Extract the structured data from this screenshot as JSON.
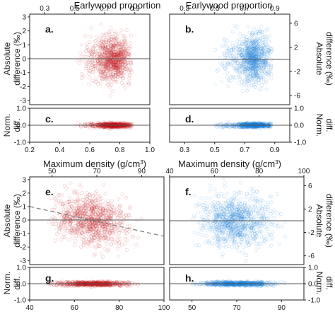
{
  "colors": {
    "red": "#c0141e",
    "blue": "#1a7fd6",
    "axis": "#222222",
    "zero_line": "#555555",
    "trend": "#7a7a7a"
  },
  "titles": {
    "top_earlywood_left": "Earlywood proportion",
    "top_earlywood_right": "Earlywood proportion",
    "top_density_left": "Maximum density (g/cm",
    "top_density_right": "Maximum density (g/cm",
    "density_superscript": "3",
    "density_close": ")"
  },
  "y_labels": {
    "abs_line1": "Absolute",
    "abs_line2": "difference (‰",
    "abs_close": ")",
    "norm_line1": "Norm.",
    "norm_line2": "diff."
  },
  "chart_data": [
    {
      "id": "a",
      "letter": "a.",
      "type": "scatter",
      "color": "red",
      "xlim": [
        0.2,
        1.0
      ],
      "ylim": [
        -3.3,
        3.2
      ],
      "xticks_top": [
        "0.3",
        "0.5",
        "0.7",
        "0.9"
      ],
      "xticks_top_vals": [
        0.3,
        0.5,
        0.7,
        0.9
      ],
      "yticks": [
        "3",
        "2",
        "1",
        "0",
        "-1",
        "-2",
        "-3"
      ],
      "ytick_vals": [
        3,
        2,
        1,
        0,
        -1,
        -2,
        -3
      ],
      "ytick_side": "left",
      "zero_line": true,
      "cloud": {
        "center": 0.78,
        "spread": 0.06,
        "skew": "left",
        "y_sd": 0.8,
        "min": 0.5,
        "max": 0.88
      }
    },
    {
      "id": "b",
      "letter": "b.",
      "type": "scatter",
      "color": "blue",
      "xlim": [
        0.2,
        1.0
      ],
      "ylim": [
        -7.5,
        7.5
      ],
      "xticks_top": [
        "0.3",
        "0.5",
        "0.7",
        "0.9"
      ],
      "xticks_top_vals": [
        0.3,
        0.5,
        0.7,
        0.9
      ],
      "yticks": [
        "6",
        "2",
        "-2",
        "-6"
      ],
      "ytick_vals": [
        6,
        2,
        -2,
        -6
      ],
      "ytick_side": "right",
      "zero_line": true,
      "cloud": {
        "center": 0.78,
        "spread": 0.06,
        "skew": "left",
        "y_sd": 2.0,
        "min": 0.5,
        "max": 0.88
      }
    },
    {
      "id": "c",
      "letter": "c.",
      "type": "scatter",
      "color": "red",
      "xlim": [
        0.2,
        1.0
      ],
      "ylim": [
        -1.0,
        1.0
      ],
      "xticks_bottom": [
        "0.2",
        "0.4",
        "0.6",
        "0.8",
        "1.0"
      ],
      "xticks_bottom_vals": [
        0.2,
        0.4,
        0.6,
        0.8,
        1.0
      ],
      "yticks": [
        "1.0",
        "0.0",
        "-1.0"
      ],
      "ytick_vals": [
        1.0,
        0.0,
        -1.0
      ],
      "ytick_side": "left",
      "zero_line": true,
      "cloud": {
        "center": 0.78,
        "spread": 0.06,
        "skew": "left",
        "y_sd": 0.06,
        "min": 0.5,
        "max": 0.88
      }
    },
    {
      "id": "d",
      "letter": "d.",
      "type": "scatter",
      "color": "blue",
      "xlim": [
        0.2,
        1.0
      ],
      "ylim": [
        -1.0,
        1.0
      ],
      "xticks_bottom": [
        "0.3",
        "0.5",
        "0.7",
        "0.9"
      ],
      "xticks_bottom_vals": [
        0.3,
        0.5,
        0.7,
        0.9
      ],
      "yticks": [
        "1.0",
        "0.0",
        "-1.0"
      ],
      "ytick_vals": [
        1.0,
        0.0,
        -1.0
      ],
      "ytick_side": "right",
      "zero_line": true,
      "cloud": {
        "center": 0.78,
        "spread": 0.06,
        "skew": "left",
        "y_sd": 0.06,
        "min": 0.5,
        "max": 0.88
      }
    },
    {
      "id": "e",
      "letter": "e.",
      "type": "scatter",
      "color": "red",
      "xlim": [
        40,
        100
      ],
      "ylim": [
        -3.3,
        3.2
      ],
      "xticks_top": [
        "50",
        "70",
        "90"
      ],
      "xticks_top_vals": [
        50,
        70,
        90
      ],
      "yticks": [
        "3",
        "2",
        "1",
        "0",
        "-1",
        "-2",
        "-3"
      ],
      "ytick_vals": [
        3,
        2,
        1,
        0,
        -1,
        -2,
        -3
      ],
      "ytick_side": "left",
      "zero_line": true,
      "trend": {
        "x": [
          40,
          100
        ],
        "y": [
          1.0,
          -1.2
        ]
      },
      "cloud": {
        "center": 68,
        "spread": 8,
        "skew": "none",
        "y_sd": 0.9,
        "min": 48,
        "max": 90
      }
    },
    {
      "id": "f",
      "letter": "f.",
      "type": "scatter",
      "color": "blue",
      "xlim": [
        40,
        100
      ],
      "ylim": [
        -7.5,
        7.5
      ],
      "xticks_top": [
        "40",
        "60",
        "80",
        "100"
      ],
      "xticks_top_vals": [
        40,
        60,
        80,
        100
      ],
      "yticks": [
        "6",
        "2",
        "-2",
        "-6"
      ],
      "ytick_vals": [
        6,
        2,
        -2,
        -6
      ],
      "ytick_side": "right",
      "zero_line": true,
      "cloud": {
        "center": 70,
        "spread": 8,
        "skew": "none",
        "y_sd": 2.2,
        "min": 50,
        "max": 92
      }
    },
    {
      "id": "g",
      "letter": "g.",
      "type": "scatter",
      "color": "red",
      "xlim": [
        40,
        100
      ],
      "ylim": [
        -1.0,
        1.0
      ],
      "xticks_bottom": [
        "40",
        "60",
        "80",
        "100"
      ],
      "xticks_bottom_vals": [
        40,
        60,
        80,
        100
      ],
      "yticks": [
        "1.0",
        "0.0",
        "-1.0"
      ],
      "ytick_vals": [
        1.0,
        0.0,
        -1.0
      ],
      "ytick_side": "left",
      "zero_line": true,
      "cloud": {
        "center": 68,
        "spread": 8,
        "skew": "none",
        "y_sd": 0.06,
        "min": 48,
        "max": 90
      }
    },
    {
      "id": "h",
      "letter": "h.",
      "type": "scatter",
      "color": "blue",
      "xlim": [
        40,
        100
      ],
      "ylim": [
        -1.0,
        1.0
      ],
      "xticks_bottom": [
        "50",
        "70",
        "90"
      ],
      "xticks_bottom_vals": [
        50,
        70,
        90
      ],
      "yticks": [
        "1.0",
        "0.0",
        "-1.0"
      ],
      "ytick_vals": [
        1.0,
        0.0,
        -1.0
      ],
      "ytick_side": "right",
      "zero_line": true,
      "cloud": {
        "center": 70,
        "spread": 8,
        "skew": "none",
        "y_sd": 0.06,
        "min": 50,
        "max": 92
      }
    }
  ]
}
